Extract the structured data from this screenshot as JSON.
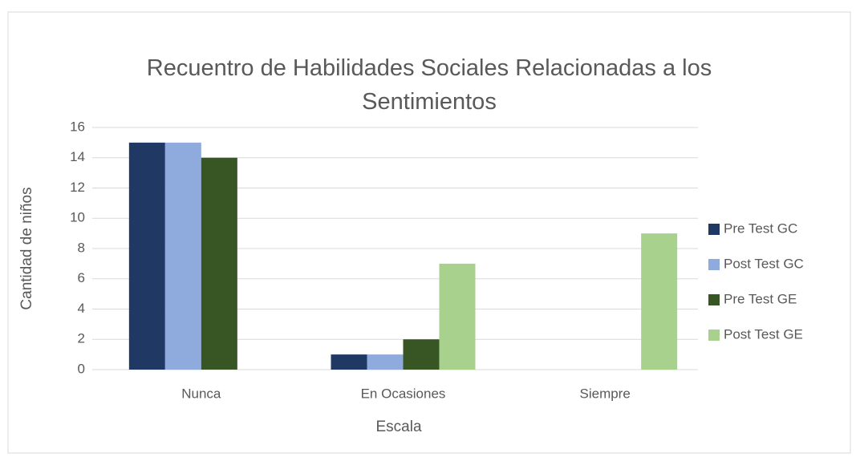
{
  "chart_data": {
    "type": "bar",
    "title": "Recuentro de Habilidades Sociales Relacionadas a los Sentimientos",
    "x_label": "Escala",
    "y_label": "Cantidad de niños",
    "categories": [
      "Nunca",
      "En Ocasiones",
      "Siempre"
    ],
    "series": [
      {
        "name": "Pre Test GC",
        "color": "#1f3864",
        "values": [
          15,
          1,
          0
        ]
      },
      {
        "name": "Post Test GC",
        "color": "#8faadc",
        "values": [
          15,
          1,
          0
        ]
      },
      {
        "name": "Pre Test GE",
        "color": "#375623",
        "values": [
          14,
          2,
          0
        ]
      },
      {
        "name": "Post Test GE",
        "color": "#a9d18e",
        "values": [
          0,
          7,
          9
        ]
      }
    ],
    "ylim": [
      0,
      16
    ],
    "yticks": [
      0,
      2,
      4,
      6,
      8,
      10,
      12,
      14,
      16
    ],
    "grid": true,
    "legend": "right"
  }
}
